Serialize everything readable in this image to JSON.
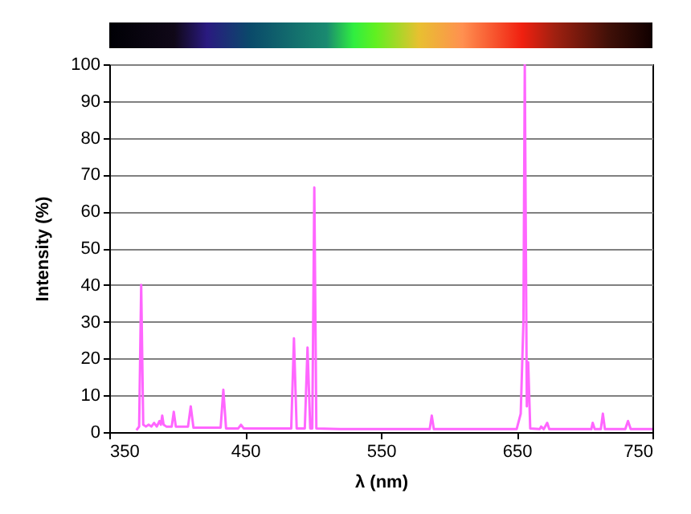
{
  "chart_data": {
    "type": "line",
    "xlabel": "λ (nm)",
    "ylabel": "Intensity (%)",
    "xlim": [
      350,
      750
    ],
    "xticks": [
      350,
      450,
      550,
      650,
      750
    ],
    "ylim": [
      0,
      100
    ],
    "yticks": [
      0,
      10,
      20,
      30,
      40,
      50,
      60,
      70,
      80,
      90,
      100
    ],
    "grid": "y",
    "marker": "none",
    "series": [
      {
        "color": "#ff66ff",
        "x": [
          370,
          372,
          373.5,
          375,
          377,
          379,
          381,
          383,
          385,
          387,
          388,
          389,
          390,
          392,
          396,
          397.5,
          399,
          408,
          410,
          412,
          432,
          434,
          436,
          445,
          447,
          449,
          484,
          486,
          488,
          494,
          496,
          498,
          499.5,
          501,
          502.5,
          520,
          586,
          587.5,
          589,
          650,
          653,
          655,
          656,
          657.5,
          658.5,
          660,
          667,
          668,
          670,
          672.5,
          674,
          705,
          706,
          707.5,
          712,
          713.5,
          715,
          730,
          732,
          734,
          750
        ],
        "values": [
          0.5,
          1.5,
          40,
          2,
          1.5,
          2,
          1.5,
          2.5,
          1.5,
          3,
          2,
          4.5,
          2,
          1.5,
          1.5,
          5.5,
          1.5,
          1.5,
          7,
          1.2,
          1.2,
          11.5,
          1,
          1,
          2,
          1,
          1,
          25.5,
          1,
          1,
          23,
          1,
          1,
          66.5,
          1,
          0.8,
          0.8,
          4.5,
          0.8,
          0.8,
          5,
          30,
          100,
          7,
          19,
          1,
          0.8,
          1.5,
          0.8,
          2.5,
          0.8,
          0.8,
          2.5,
          0.8,
          0.8,
          5,
          0.8,
          0.8,
          3,
          0.8,
          0.8
        ]
      }
    ]
  }
}
